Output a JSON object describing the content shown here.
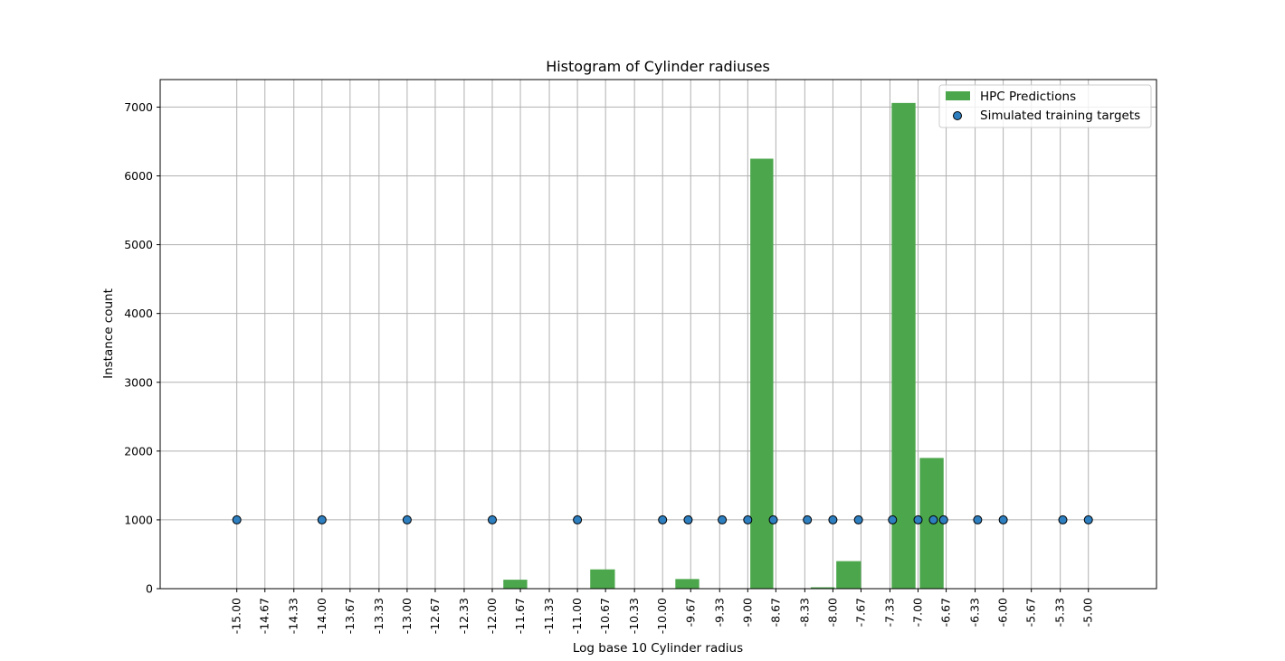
{
  "chart_data": {
    "type": "bar",
    "title": "Histogram of Cylinder radiuses",
    "xlabel": "Log base 10 Cylinder radius",
    "ylabel": "Instance count",
    "xlim": [
      -15.9,
      -4.2
    ],
    "ylim": [
      0,
      7400
    ],
    "grid": true,
    "legend_position": "top-right",
    "x_ticks": [
      -15.0,
      -14.67,
      -14.33,
      -14.0,
      -13.67,
      -13.33,
      -13.0,
      -12.67,
      -12.33,
      -12.0,
      -11.67,
      -11.33,
      -11.0,
      -10.67,
      -10.33,
      -10.0,
      -9.67,
      -9.33,
      -9.0,
      -8.67,
      -8.33,
      -8.0,
      -7.67,
      -7.33,
      -7.0,
      -6.67,
      -6.33,
      -6.0,
      -5.67,
      -5.33,
      -5.0
    ],
    "x_tick_labels": [
      "-15.00",
      "-14.67",
      "-14.33",
      "-14.00",
      "-13.67",
      "-13.33",
      "-13.00",
      "-12.67",
      "-12.33",
      "-12.00",
      "-11.67",
      "-11.33",
      "-11.00",
      "-10.67",
      "-10.33",
      "-10.00",
      "-9.67",
      "-9.33",
      "-9.00",
      "-8.67",
      "-8.33",
      "-8.00",
      "-7.67",
      "-7.33",
      "-7.00",
      "-6.67",
      "-6.33",
      "-6.00",
      "-5.67",
      "-5.33",
      "-5.00"
    ],
    "y_ticks": [
      0,
      1000,
      2000,
      3000,
      4000,
      5000,
      6000,
      7000
    ],
    "y_tick_labels": [
      "0",
      "1000",
      "2000",
      "3000",
      "4000",
      "5000",
      "6000",
      "7000"
    ],
    "bar_series": {
      "name": "HPC Predictions",
      "color": "#4ca64c",
      "bins": [
        {
          "x0": -11.87,
          "x1": -11.59,
          "count": 130
        },
        {
          "x0": -10.85,
          "x1": -10.56,
          "count": 280
        },
        {
          "x0": -9.85,
          "x1": -9.57,
          "count": 140
        },
        {
          "x0": -8.97,
          "x1": -8.7,
          "count": 6250
        },
        {
          "x0": -8.26,
          "x1": -7.98,
          "count": 20
        },
        {
          "x0": -7.96,
          "x1": -7.67,
          "count": 400
        },
        {
          "x0": -7.31,
          "x1": -7.03,
          "count": 7060
        },
        {
          "x0": -6.98,
          "x1": -6.7,
          "count": 1900
        }
      ]
    },
    "scatter_series": {
      "name": "Simulated training targets",
      "color": "#2e7fc0",
      "edge_color": "#000000",
      "x": [
        -15.0,
        -14.0,
        -13.0,
        -12.0,
        -11.0,
        -10.0,
        -9.7,
        -9.3,
        -9.0,
        -8.7,
        -8.3,
        -8.0,
        -7.7,
        -7.3,
        -7.0,
        -6.82,
        -6.7,
        -6.3,
        -6.0,
        -5.3,
        -5.0
      ],
      "y": [
        1000,
        1000,
        1000,
        1000,
        1000,
        1000,
        1000,
        1000,
        1000,
        1000,
        1000,
        1000,
        1000,
        1000,
        1000,
        1000,
        1000,
        1000,
        1000,
        1000,
        1000
      ]
    }
  }
}
